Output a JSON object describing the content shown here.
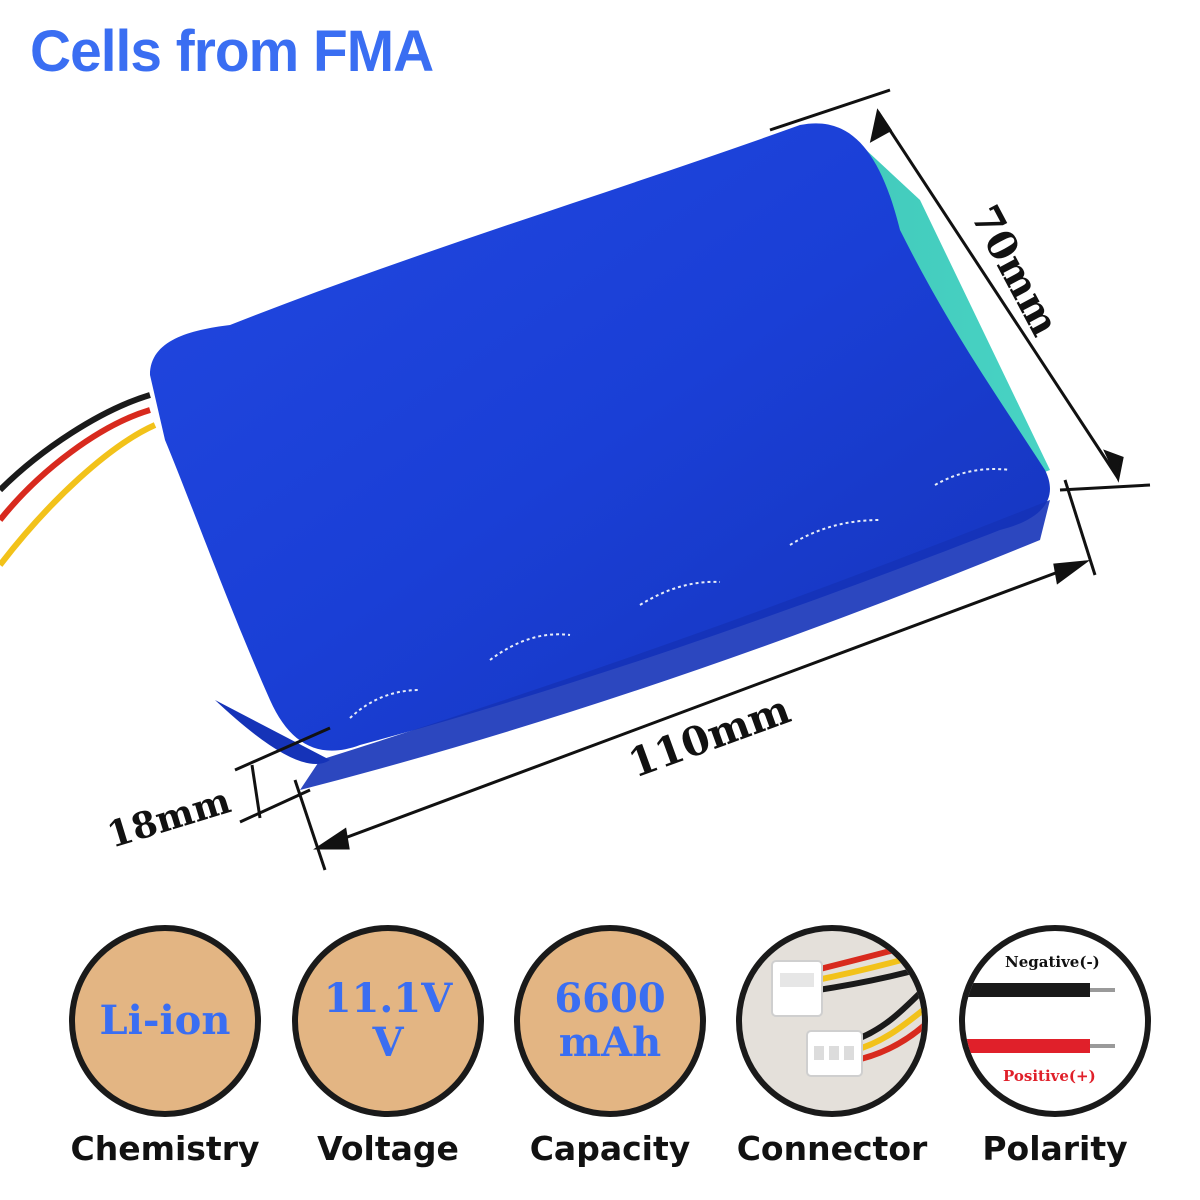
{
  "title": "Cells from FMA",
  "dimensions": {
    "width": "70mm",
    "length": "110mm",
    "thickness": "18mm"
  },
  "colors": {
    "title": "#3a6ef2",
    "battery": "#1a3fd6",
    "side": "#37c2b6",
    "badge": "#e3b583"
  },
  "specs": [
    {
      "label": "Chemistry",
      "line1": "Li-ion",
      "line2": ""
    },
    {
      "label": "Voltage",
      "line1": "11.1V",
      "line2": "V"
    },
    {
      "label": "Capacity",
      "line1": "6600",
      "line2": "mAh"
    },
    {
      "label": "Connector",
      "icon": "connector-photo-icon"
    },
    {
      "label": "Polarity",
      "negative": "Negative(-)",
      "positive": "Positive(+)"
    }
  ]
}
